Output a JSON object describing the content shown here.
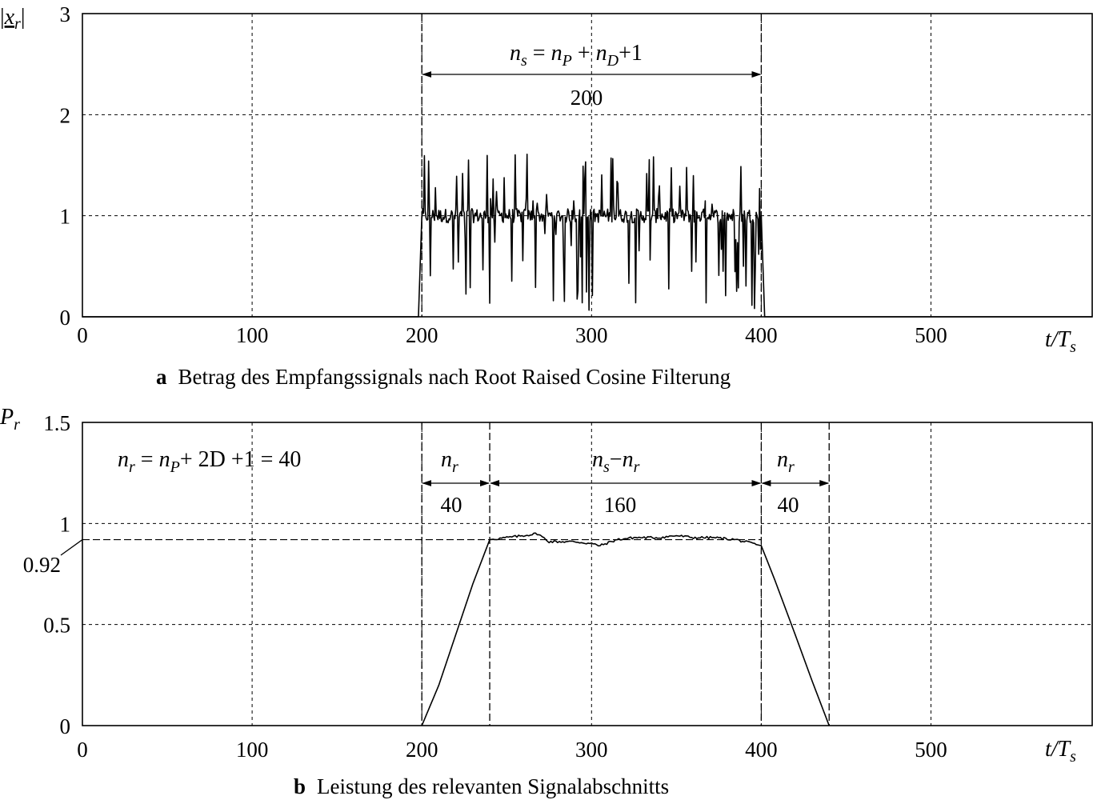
{
  "chart_data": [
    {
      "type": "line",
      "panel": "a",
      "caption_label": "a",
      "caption": "Betrag des Empfangssignals nach Root Raised Cosine Filterung",
      "ylabel": {
        "base": "x",
        "sub": "r",
        "pre": "|",
        "post": "|"
      },
      "xlabel": {
        "base": "t/T",
        "sub": "s"
      },
      "xlim": [
        0,
        595
      ],
      "ylim": [
        0,
        3
      ],
      "xticks": [
        "0",
        "100",
        "200",
        "300",
        "400",
        "500"
      ],
      "yticks": [
        "0",
        "1",
        "2",
        "3"
      ],
      "grid": true,
      "signal": {
        "start": 200,
        "end": 400,
        "ramp_width": 2,
        "baseline": 1.0,
        "description_values": "noisy envelope around 1, peaks up to about 1.66, dips down to about 0.03"
      },
      "annotation": {
        "formula": {
          "a": "n",
          "a_sub": "s",
          "b": "n",
          "b_sub": "P",
          "c": "n",
          "c_sub": "D",
          "tail": "+1"
        },
        "span": [
          200,
          400
        ],
        "value": "200"
      },
      "markers": [
        200,
        400
      ]
    },
    {
      "type": "line",
      "panel": "b",
      "caption_label": "b",
      "caption": "Leistung des relevanten Signalabschnitts",
      "ylabel": {
        "base": "P",
        "sub": "r"
      },
      "xlabel": {
        "base": "t/T",
        "sub": "s"
      },
      "xlim": [
        0,
        595
      ],
      "ylim": [
        0,
        1.5
      ],
      "xticks": [
        "0",
        "100",
        "200",
        "300",
        "400",
        "500"
      ],
      "yticks": [
        "0",
        "0.5",
        "1",
        "1.5"
      ],
      "grid": true,
      "reference": {
        "value": 0.92,
        "label": "0.92"
      },
      "formula": {
        "lhs": "n",
        "lhs_sub": "r",
        "p": "n",
        "p_sub": "P",
        "rest": "+ 2D +1 = 40"
      },
      "segments": [
        {
          "from": 200,
          "to": 240,
          "label": "n",
          "label_sub": "r",
          "value": "40"
        },
        {
          "from": 240,
          "to": 400,
          "label": "n",
          "label_sub": "s",
          "label2": "n",
          "label2_sub": "r",
          "value": "160"
        },
        {
          "from": 400,
          "to": 440,
          "label": "n",
          "label_sub": "r",
          "value": "40"
        }
      ],
      "curve": [
        [
          200,
          0.0
        ],
        [
          210,
          0.2
        ],
        [
          220,
          0.45
        ],
        [
          230,
          0.7
        ],
        [
          240,
          0.92
        ],
        [
          250,
          0.93
        ],
        [
          260,
          0.94
        ],
        [
          268,
          0.95
        ],
        [
          275,
          0.91
        ],
        [
          290,
          0.91
        ],
        [
          300,
          0.9
        ],
        [
          305,
          0.89
        ],
        [
          315,
          0.92
        ],
        [
          325,
          0.93
        ],
        [
          340,
          0.93
        ],
        [
          350,
          0.94
        ],
        [
          360,
          0.93
        ],
        [
          372,
          0.93
        ],
        [
          385,
          0.92
        ],
        [
          400,
          0.89
        ],
        [
          408,
          0.72
        ],
        [
          420,
          0.45
        ],
        [
          430,
          0.22
        ],
        [
          440,
          0.0
        ]
      ],
      "markers": [
        200,
        240,
        400,
        440
      ]
    }
  ]
}
